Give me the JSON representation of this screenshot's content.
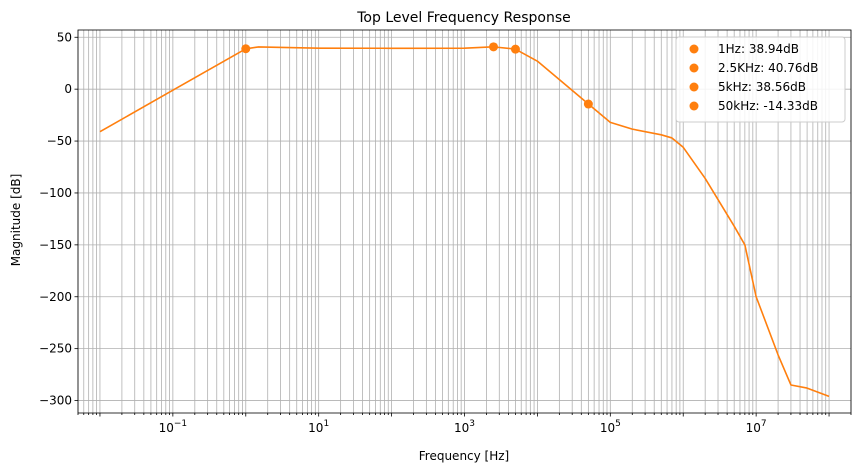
{
  "chart_data": {
    "type": "line",
    "title": "Top Level Frequency Response",
    "xlabel": "Frequency [Hz]",
    "ylabel": "Magnitude [dB]",
    "x_scale": "log",
    "xlim": [
      0.005,
      200000000
    ],
    "ylim": [
      -312,
      57
    ],
    "x_ticks": [
      {
        "value": 0.1,
        "base": "10",
        "exp": "−1"
      },
      {
        "value": 10,
        "base": "10",
        "exp": "1"
      },
      {
        "value": 1000,
        "base": "10",
        "exp": "3"
      },
      {
        "value": 100000,
        "base": "10",
        "exp": "5"
      },
      {
        "value": 10000000,
        "base": "10",
        "exp": "7"
      }
    ],
    "y_ticks": [
      {
        "value": 50,
        "label": "50"
      },
      {
        "value": 0,
        "label": "0"
      },
      {
        "value": -50,
        "label": "−50"
      },
      {
        "value": -100,
        "label": "−100"
      },
      {
        "value": -150,
        "label": "−150"
      },
      {
        "value": -200,
        "label": "−200"
      },
      {
        "value": -250,
        "label": "−250"
      },
      {
        "value": -300,
        "label": "−300"
      }
    ],
    "grid": true,
    "line_color": "#ff7f0e",
    "series": [
      {
        "x": [
          0.01,
          0.1,
          1,
          1.5,
          10,
          100,
          1000,
          2500,
          5000,
          10000,
          50000,
          100000,
          200000,
          500000,
          700000,
          1000000,
          2000000,
          5000000,
          7000000,
          10000000,
          20000000,
          30000000,
          50000000,
          100000000
        ],
        "y": [
          -41,
          -1,
          38.9,
          40.7,
          39.5,
          39.4,
          39.5,
          40.76,
          38.56,
          27,
          -14.33,
          -32,
          -38.5,
          -44,
          -47,
          -56,
          -86,
          -132,
          -150,
          -200,
          -256,
          -285,
          -288,
          -296
        ]
      }
    ],
    "markers": [
      {
        "x": 1,
        "y": 38.94,
        "label": "1Hz: 38.94dB"
      },
      {
        "x": 2500,
        "y": 40.76,
        "label": "2.5KHz: 40.76dB"
      },
      {
        "x": 5000,
        "y": 38.56,
        "label": "5kHz: 38.56dB"
      },
      {
        "x": 50000,
        "y": -14.33,
        "label": "50kHz: -14.33dB"
      }
    ],
    "legend": "top-right"
  }
}
